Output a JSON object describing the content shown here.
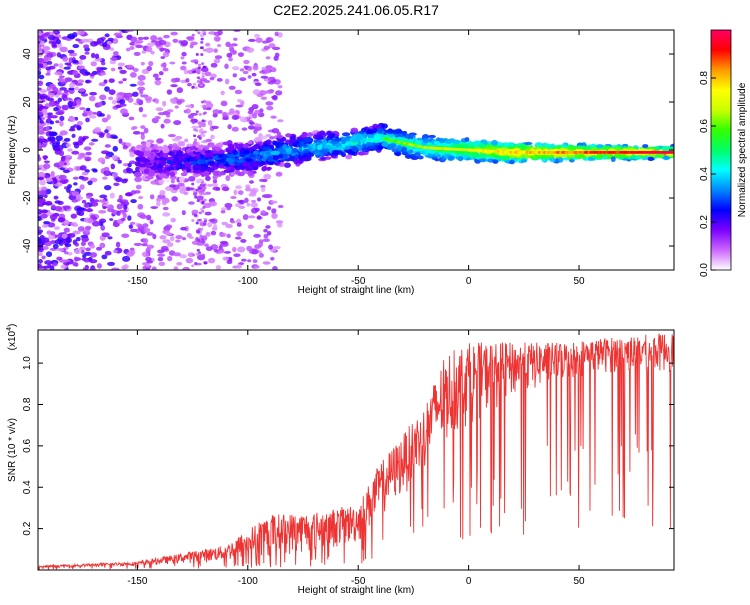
{
  "title": "C2E2.2025.241.06.05.R17",
  "chart_data": [
    {
      "type": "heatmap",
      "id": "spectrogram",
      "xlabel": "Height of straight line (km)",
      "ylabel": "Frequency (Hz)",
      "xlim": [
        -195,
        93
      ],
      "ylim": [
        -50,
        50
      ],
      "xticks": [
        -150,
        -100,
        -50,
        0,
        50
      ],
      "yticks": [
        -40,
        -20,
        0,
        20,
        40
      ],
      "ridge": [
        {
          "x": -195,
          "y": -3
        },
        {
          "x": -150,
          "y": -5
        },
        {
          "x": -120,
          "y": -5
        },
        {
          "x": -100,
          "y": -3
        },
        {
          "x": -80,
          "y": 0
        },
        {
          "x": -60,
          "y": 2
        },
        {
          "x": -40,
          "y": 5
        },
        {
          "x": -35,
          "y": 4
        },
        {
          "x": -20,
          "y": 1
        },
        {
          "x": 0,
          "y": 0
        },
        {
          "x": 20,
          "y": -1
        },
        {
          "x": 50,
          "y": -1
        },
        {
          "x": 93,
          "y": -1
        }
      ],
      "colorbar": {
        "label": "Normalized spectral amplitude",
        "range": [
          0,
          1
        ],
        "ticks": [
          0.0,
          0.2,
          0.4,
          0.6,
          0.8
        ],
        "tick_labels": [
          "0.0",
          "0.2",
          "0.4",
          "0.6",
          "0.8"
        ],
        "colors": [
          "#ffffff",
          "#cc66ff",
          "#7a00ff",
          "#0000ff",
          "#0088ff",
          "#00ffff",
          "#00ff66",
          "#33ff00",
          "#ccff00",
          "#ffff00",
          "#ff9900",
          "#ff0000",
          "#ff0066"
        ]
      }
    },
    {
      "type": "line",
      "id": "snr",
      "xlabel": "Height of straight line (km)",
      "ylabel": "SNR (10 * v/v)",
      "y_multiplier": "(x10",
      "y_multiplier_exp": "4",
      "y_multiplier_close": ")",
      "xlim": [
        -195,
        93
      ],
      "ylim": [
        0,
        1.16
      ],
      "xticks": [
        -150,
        -100,
        -50,
        0,
        50
      ],
      "yticks": [
        0.2,
        0.4,
        0.6,
        0.8,
        1.0
      ],
      "ytick_labels": [
        "0.2",
        "0.4",
        "0.6",
        "0.8",
        "1.0"
      ],
      "color": "#ee3333",
      "envelope": [
        {
          "x": -195,
          "base": 0.01,
          "peak": 0.02
        },
        {
          "x": -150,
          "base": 0.02,
          "peak": 0.04
        },
        {
          "x": -130,
          "base": 0.03,
          "peak": 0.08
        },
        {
          "x": -110,
          "base": 0.04,
          "peak": 0.12
        },
        {
          "x": -90,
          "base": 0.06,
          "peak": 0.27
        },
        {
          "x": -70,
          "base": 0.08,
          "peak": 0.28
        },
        {
          "x": -50,
          "base": 0.12,
          "peak": 0.32
        },
        {
          "x": -40,
          "base": 0.25,
          "peak": 0.52
        },
        {
          "x": -30,
          "base": 0.35,
          "peak": 0.65
        },
        {
          "x": -20,
          "base": 0.48,
          "peak": 0.8
        },
        {
          "x": -10,
          "base": 0.6,
          "peak": 1.05
        },
        {
          "x": 0,
          "base": 0.7,
          "peak": 1.1
        },
        {
          "x": 20,
          "base": 0.82,
          "peak": 1.1
        },
        {
          "x": 40,
          "base": 0.9,
          "peak": 1.1
        },
        {
          "x": 60,
          "base": 0.95,
          "peak": 1.12
        },
        {
          "x": 93,
          "base": 0.95,
          "peak": 1.15
        }
      ]
    }
  ]
}
